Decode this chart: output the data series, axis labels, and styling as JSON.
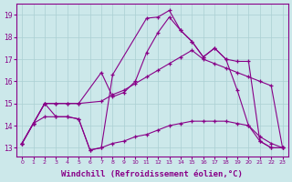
{
  "background_color": "#cce8ea",
  "grid_color": "#aacfd2",
  "line_color": "#880088",
  "marker": "+",
  "xlabel": "Windchill (Refroidissement éolien,°C)",
  "xlabel_fontsize": 6.5,
  "ylabel_ticks": [
    13,
    14,
    15,
    16,
    17,
    18,
    19
  ],
  "xlabel_ticks": [
    0,
    1,
    2,
    3,
    4,
    5,
    6,
    7,
    8,
    9,
    10,
    11,
    12,
    13,
    14,
    15,
    16,
    17,
    18,
    19,
    20,
    21,
    22,
    23
  ],
  "xlim": [
    -0.5,
    23.5
  ],
  "ylim": [
    12.6,
    19.5
  ],
  "series": [
    {
      "x": [
        0,
        1,
        2,
        3,
        4,
        5,
        6,
        7,
        8,
        11,
        12,
        13,
        14,
        15,
        16,
        17,
        18,
        19,
        20,
        21,
        22,
        23
      ],
      "y": [
        13.2,
        14.1,
        15.0,
        14.4,
        14.4,
        14.3,
        12.9,
        13.0,
        16.3,
        18.85,
        18.9,
        19.2,
        18.3,
        17.8,
        17.1,
        17.5,
        17.0,
        15.6,
        14.0,
        13.3,
        13.0,
        13.0
      ]
    },
    {
      "x": [
        0,
        1,
        2,
        3,
        4,
        5,
        7,
        8,
        9,
        10,
        11,
        12,
        13,
        14,
        15,
        16,
        17,
        18,
        19,
        20,
        21,
        22,
        23
      ],
      "y": [
        13.2,
        14.1,
        15.0,
        15.0,
        15.0,
        15.0,
        16.4,
        15.3,
        15.5,
        16.0,
        17.3,
        18.2,
        18.9,
        18.3,
        17.8,
        17.1,
        17.5,
        17.0,
        16.9,
        16.9,
        13.3,
        13.0,
        13.0
      ]
    },
    {
      "x": [
        0,
        1,
        2,
        3,
        4,
        5,
        7,
        8,
        9,
        10,
        11,
        12,
        13,
        14,
        15,
        16,
        17,
        18,
        19,
        20,
        21,
        22,
        23
      ],
      "y": [
        13.2,
        14.1,
        15.0,
        15.0,
        15.0,
        15.0,
        15.1,
        15.4,
        15.6,
        15.9,
        16.2,
        16.5,
        16.8,
        17.1,
        17.4,
        17.0,
        16.8,
        16.6,
        16.4,
        16.2,
        16.0,
        15.8,
        13.0
      ]
    },
    {
      "x": [
        0,
        1,
        2,
        3,
        4,
        5,
        6,
        7,
        8,
        9,
        10,
        11,
        12,
        13,
        14,
        15,
        16,
        17,
        18,
        19,
        20,
        21,
        22,
        23
      ],
      "y": [
        13.2,
        14.1,
        14.4,
        14.4,
        14.4,
        14.3,
        12.9,
        13.0,
        13.2,
        13.3,
        13.5,
        13.6,
        13.8,
        14.0,
        14.1,
        14.2,
        14.2,
        14.2,
        14.2,
        14.1,
        14.0,
        13.5,
        13.2,
        13.0
      ]
    }
  ]
}
